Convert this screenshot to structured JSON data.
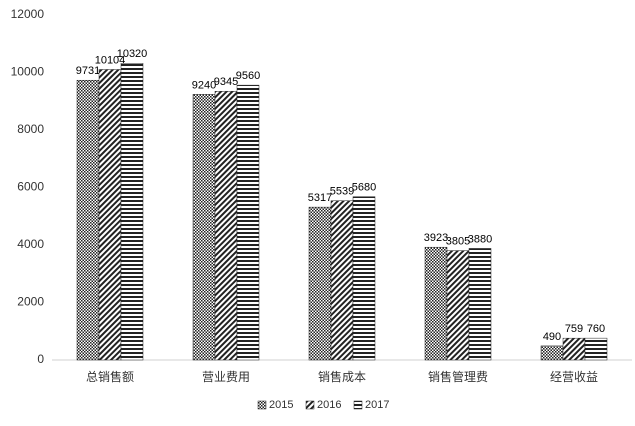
{
  "chart_data": {
    "type": "bar",
    "categories": [
      "总销售额",
      "营业费用",
      "销售成本",
      "销售管理费",
      "经营收益"
    ],
    "series": [
      {
        "name": "2015",
        "color": "#222222",
        "values": [
          9731,
          9240,
          5317,
          3923,
          490
        ]
      },
      {
        "name": "2016",
        "color": "#222222",
        "values": [
          10104,
          9345,
          5539,
          3805,
          759
        ]
      },
      {
        "name": "2017",
        "color": "#222222",
        "values": [
          10320,
          9560,
          5680,
          3880,
          760
        ]
      }
    ],
    "ylim": [
      0,
      12000
    ],
    "yticks": [
      0,
      2000,
      4000,
      6000,
      8000,
      10000,
      12000
    ],
    "grid": false,
    "legend": "bottom"
  }
}
